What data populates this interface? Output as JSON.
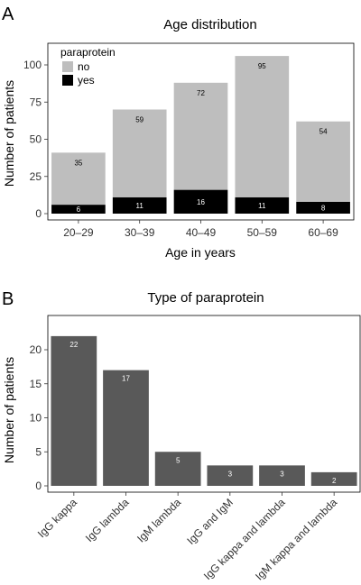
{
  "chart_data": [
    {
      "panel": "A",
      "type": "bar",
      "stacked": true,
      "title": "Age distribution",
      "xlabel": "Age in years",
      "ylabel": "Number of patients",
      "categories": [
        "20–29",
        "30–39",
        "40–49",
        "50–59",
        "60–69"
      ],
      "series": [
        {
          "name": "yes",
          "values": [
            6,
            11,
            16,
            11,
            8
          ],
          "color": "#000000",
          "label_color": "#ffffff"
        },
        {
          "name": "no",
          "values": [
            35,
            59,
            72,
            95,
            54
          ],
          "color": "#bebebe",
          "label_color": "#000000"
        }
      ],
      "yticks": [
        0,
        25,
        50,
        75,
        100
      ],
      "ylim": [
        0,
        108
      ],
      "legend": {
        "title": "paraprotein",
        "placement": "top-left",
        "items": [
          "no",
          "yes"
        ]
      },
      "grid": false
    },
    {
      "panel": "B",
      "type": "bar",
      "title": "Type of paraprotein",
      "xlabel": "",
      "ylabel": "Number of patients",
      "categories": [
        "IgG kappa",
        "IgG lambda",
        "IgM lambda",
        "IgG and IgM",
        "IgG kappa and lambda",
        "IgM kappa and lambda"
      ],
      "values": [
        22,
        17,
        5,
        3,
        3,
        2
      ],
      "color": "#595959",
      "label_color": "#ffffff",
      "yticks": [
        0,
        5,
        10,
        15,
        20
      ],
      "ylim": [
        0,
        23.1
      ],
      "grid": false
    }
  ]
}
